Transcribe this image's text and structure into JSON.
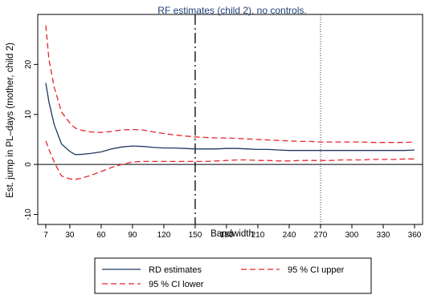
{
  "chart_data": {
    "type": "line",
    "title": "RF estimates (child 2), no controls.",
    "xlabel": "Bandwidth",
    "ylabel": "Est. jump in PL–days (mother, child 2)",
    "xlim": [
      7,
      360
    ],
    "ylim": [
      -12,
      30
    ],
    "xticks": [
      7,
      30,
      60,
      90,
      120,
      150,
      180,
      210,
      240,
      270,
      300,
      330,
      360
    ],
    "yticks": [
      -10,
      0,
      10,
      20
    ],
    "grid": false,
    "zero_line": 0,
    "reference_lines": [
      {
        "x": 150,
        "style": "dashdot"
      },
      {
        "x": 270,
        "style": "dotted"
      }
    ],
    "legend_position": "bottom",
    "series": [
      {
        "name": "RD estimates",
        "color": "#1f3a5f",
        "style": "solid",
        "x": [
          7,
          10,
          15,
          22,
          30,
          35,
          40,
          50,
          60,
          70,
          80,
          90,
          100,
          110,
          120,
          130,
          140,
          150,
          160,
          170,
          180,
          190,
          200,
          210,
          220,
          230,
          240,
          250,
          260,
          270,
          280,
          290,
          300,
          310,
          320,
          330,
          340,
          350,
          360
        ],
        "values": [
          16.3,
          12.5,
          8.0,
          4.1,
          2.6,
          2.0,
          2.0,
          2.2,
          2.5,
          3.1,
          3.5,
          3.7,
          3.6,
          3.4,
          3.3,
          3.3,
          3.2,
          3.1,
          3.1,
          3.1,
          3.2,
          3.2,
          3.1,
          3.0,
          3.0,
          2.9,
          2.8,
          2.8,
          2.8,
          2.8,
          2.8,
          2.8,
          2.8,
          2.8,
          2.8,
          2.8,
          2.8,
          2.8,
          2.9
        ]
      },
      {
        "name": "95 % CI upper",
        "color": "#e8242a",
        "style": "dashed",
        "x": [
          7,
          10,
          15,
          22,
          30,
          35,
          40,
          50,
          60,
          70,
          80,
          90,
          100,
          110,
          120,
          130,
          140,
          150,
          160,
          170,
          180,
          190,
          200,
          210,
          220,
          230,
          240,
          250,
          260,
          270,
          280,
          290,
          300,
          310,
          320,
          330,
          340,
          350,
          360
        ],
        "values": [
          27.8,
          21.0,
          15.5,
          10.5,
          8.3,
          7.3,
          6.9,
          6.5,
          6.4,
          6.6,
          6.9,
          7.0,
          6.9,
          6.5,
          6.2,
          5.9,
          5.7,
          5.5,
          5.4,
          5.3,
          5.3,
          5.2,
          5.1,
          5.0,
          4.9,
          4.8,
          4.7,
          4.6,
          4.6,
          4.5,
          4.5,
          4.5,
          4.5,
          4.5,
          4.4,
          4.4,
          4.4,
          4.4,
          4.5
        ]
      },
      {
        "name": "95 % CI lower",
        "color": "#e8242a",
        "style": "dashed",
        "x": [
          7,
          10,
          15,
          22,
          30,
          35,
          40,
          50,
          60,
          70,
          80,
          90,
          100,
          110,
          120,
          130,
          140,
          150,
          160,
          170,
          180,
          190,
          200,
          210,
          220,
          230,
          240,
          250,
          260,
          270,
          280,
          290,
          300,
          310,
          320,
          330,
          340,
          350,
          360
        ],
        "values": [
          4.7,
          3.0,
          0.5,
          -2.3,
          -2.9,
          -3.0,
          -2.8,
          -2.2,
          -1.4,
          -0.6,
          0.0,
          0.5,
          0.6,
          0.6,
          0.6,
          0.6,
          0.6,
          0.6,
          0.6,
          0.7,
          0.8,
          0.9,
          0.9,
          0.8,
          0.8,
          0.7,
          0.7,
          0.8,
          0.8,
          0.8,
          0.8,
          0.9,
          0.9,
          0.9,
          1.0,
          1.0,
          1.0,
          1.1,
          1.1
        ]
      }
    ]
  }
}
